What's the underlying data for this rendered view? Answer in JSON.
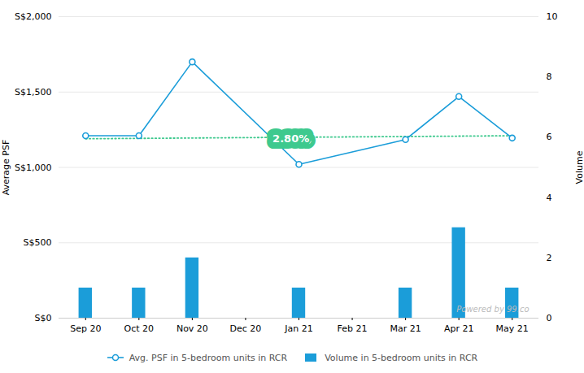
{
  "chart_data": {
    "type": "combo",
    "categories": [
      "Sep 20",
      "Oct 20",
      "Nov 20",
      "Dec 20",
      "Jan 21",
      "Feb 21",
      "Mar 21",
      "Apr 21",
      "May 21"
    ],
    "series": [
      {
        "name": "Avg. PSF in 5-bedroom units in RCR",
        "type": "line",
        "color": "#1B9DD9",
        "marker": "circle",
        "line_style": "solid",
        "x": [
          "Sep 20",
          "Oct 20",
          "Nov 20",
          "Jan 21",
          "Mar 21",
          "Apr 21",
          "May 21"
        ],
        "values": [
          1210,
          1210,
          1700,
          1020,
          1185,
          1470,
          1195
        ]
      },
      {
        "name": "Volume in 5-bedroom units in RCR",
        "type": "bar",
        "color": "#1B9DD9",
        "axis": "y2",
        "x": [
          "Sep 20",
          "Oct 20",
          "Nov 20",
          "Jan 21",
          "Mar 21",
          "Apr 21",
          "May 21"
        ],
        "values": [
          1,
          1,
          2,
          1,
          1,
          3,
          1
        ]
      },
      {
        "type": "line",
        "color": "#3EC98E",
        "line_style": "dotted",
        "x": [
          "Sep 20",
          "May 21"
        ],
        "values": [
          1190,
          1210
        ]
      }
    ],
    "annotations": [
      {
        "text": "2.80%",
        "x": 3.85,
        "y": 1190,
        "color": "#ffffff",
        "background": "#3EC98E"
      },
      {
        "text": "Powered by 99.co",
        "color": "#bbbbbb"
      }
    ],
    "ylabel": "Average PSF",
    "ylim": [
      0,
      2000
    ],
    "yticks": [
      {
        "value": 0,
        "label": "S$0"
      },
      {
        "value": 500,
        "label": "S$500"
      },
      {
        "value": 1000,
        "label": "S$1,000"
      },
      {
        "value": 1500,
        "label": "S$1,500"
      },
      {
        "value": 2000,
        "label": "S$2,000"
      }
    ],
    "y2label": "Volume",
    "y2lim": [
      0,
      10
    ],
    "y2ticks": [
      0,
      2,
      4,
      6,
      8,
      10
    ],
    "grid": true,
    "legend": "bottom"
  }
}
